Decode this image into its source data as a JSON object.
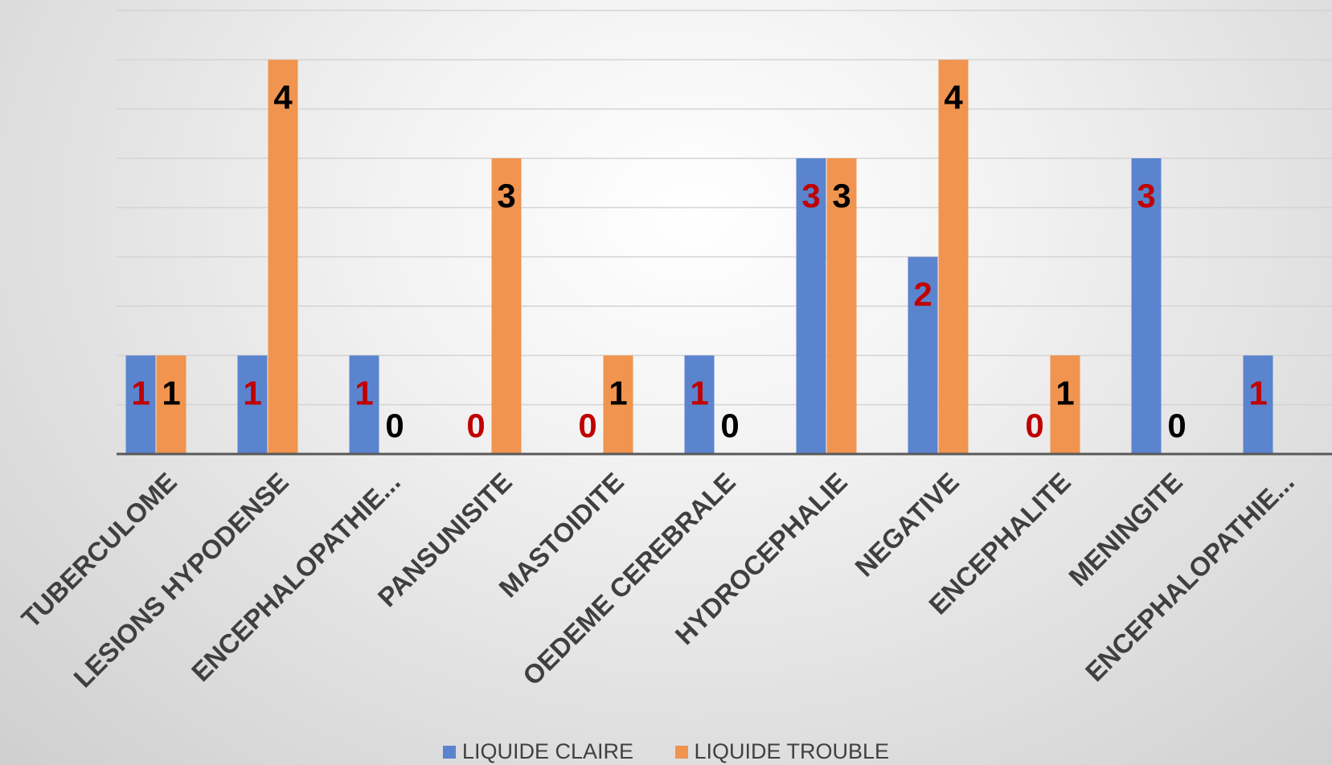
{
  "chart_data": {
    "type": "bar",
    "categories": [
      "TUBERCULOME",
      "LESIONS HYPODENSE",
      "ENCEPHALOPATHIE...",
      "PANSUNISITE",
      "MASTOIDITE",
      "OEDEME CEREBRALE",
      "HYDROCEPHALIE",
      "NEGATIVE",
      "ENCEPHALITE",
      "MENINGITE",
      "ENCEPHALOPATHIE..."
    ],
    "series": [
      {
        "name": "LIQUIDE CLAIRE",
        "values": [
          1,
          1,
          1,
          0,
          0,
          1,
          3,
          2,
          0,
          3,
          1
        ],
        "color": "#5b84cf",
        "label_color": "#c00000"
      },
      {
        "name": "LIQUIDE TROUBLE",
        "values": [
          1,
          4,
          0,
          3,
          1,
          0,
          3,
          4,
          1,
          0,
          null
        ],
        "color": "#f0944f",
        "label_color": "#000000"
      }
    ],
    "ylim": [
      0,
      4.5
    ],
    "grid": true,
    "legend_position": "bottom",
    "colors": {
      "gridline": "#d4d4d4",
      "axis": "#595959"
    }
  }
}
